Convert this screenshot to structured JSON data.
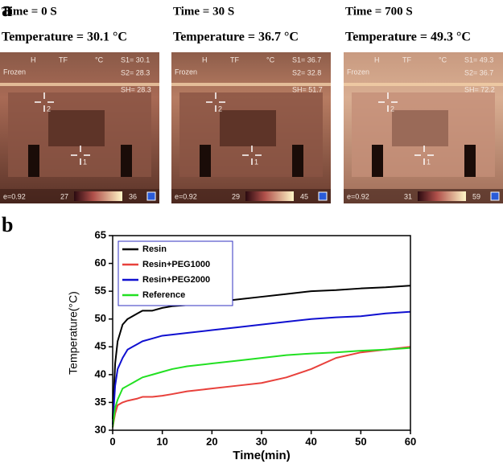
{
  "panel_a": {
    "label": "a",
    "images": [
      {
        "time": "Time = 0 S",
        "temperature": "Temperature = 30.1 °C",
        "header_marks": [
          "H",
          "TF",
          "°C"
        ],
        "mode": "Frozen",
        "s1": "S1= 30.1",
        "s2": "S2= 28.3",
        "sh": "SH= 28.3",
        "spots": [
          "2",
          "1"
        ],
        "emissivity": "e=0.92",
        "scale_min": 27,
        "scale_max": 36
      },
      {
        "time": "Time = 30 S",
        "temperature": "Temperature = 36.7 °C",
        "header_marks": [
          "H",
          "TF",
          "°C"
        ],
        "mode": "Frozen",
        "s1": "S1= 36.7",
        "s2": "S2= 32.8",
        "sh": "SH= 51.7",
        "spots": [
          "2",
          "1"
        ],
        "emissivity": "e=0.92",
        "scale_min": 29,
        "scale_max": 45
      },
      {
        "time": "Time = 700 S",
        "temperature": "Temperature = 49.3 °C",
        "header_marks": [
          "H",
          "TF",
          "°C"
        ],
        "mode": "Frozen",
        "s1": "S1= 49.3",
        "s2": "S2= 36.7",
        "sh": "SH= 72.2",
        "spots": [
          "2",
          "1"
        ],
        "emissivity": "e=0.92",
        "scale_min": 31,
        "scale_max": 59
      }
    ]
  },
  "chart_data": {
    "type": "line",
    "panel_label": "b",
    "x_label": "Time(min)",
    "y_label": "Temperature(°C)",
    "x": [
      0,
      0.5,
      1,
      2,
      3,
      4,
      5,
      6,
      8,
      10,
      12,
      15,
      20,
      25,
      30,
      35,
      40,
      45,
      50,
      55,
      60
    ],
    "series": [
      {
        "name": "Resin",
        "color": "#000000",
        "values": [
          32,
          42,
          46,
          49,
          50,
          50.5,
          51,
          51.5,
          51.5,
          52,
          52.3,
          52.5,
          53,
          53.5,
          54,
          54.5,
          55,
          55.2,
          55.5,
          55.7,
          56
        ]
      },
      {
        "name": "Resin+PEG1000",
        "color": "#e8413c",
        "values": [
          30.5,
          33,
          34.5,
          35,
          35.3,
          35.5,
          35.7,
          36,
          36,
          36.2,
          36.5,
          37,
          37.5,
          38,
          38.5,
          39.5,
          41,
          43,
          44,
          44.5,
          45
        ]
      },
      {
        "name": "Resin+PEG2000",
        "color": "#1010d0",
        "values": [
          31,
          38,
          41,
          43,
          44.5,
          45,
          45.5,
          46,
          46.5,
          47,
          47.2,
          47.5,
          48,
          48.5,
          49,
          49.5,
          50,
          50.3,
          50.5,
          51,
          51.3
        ]
      },
      {
        "name": "Reference",
        "color": "#22e022",
        "values": [
          30.5,
          34,
          35.5,
          37.5,
          38,
          38.5,
          39,
          39.5,
          40,
          40.5,
          41,
          41.5,
          42,
          42.5,
          43,
          43.5,
          43.8,
          44,
          44.3,
          44.5,
          44.8
        ]
      }
    ],
    "xlim": [
      0,
      60
    ],
    "xticks": [
      0,
      10,
      20,
      30,
      40,
      50,
      60
    ],
    "ylim": [
      30,
      65
    ],
    "yticks": [
      30,
      35,
      40,
      45,
      50,
      55,
      60,
      65
    ],
    "legend": "upper-left"
  }
}
